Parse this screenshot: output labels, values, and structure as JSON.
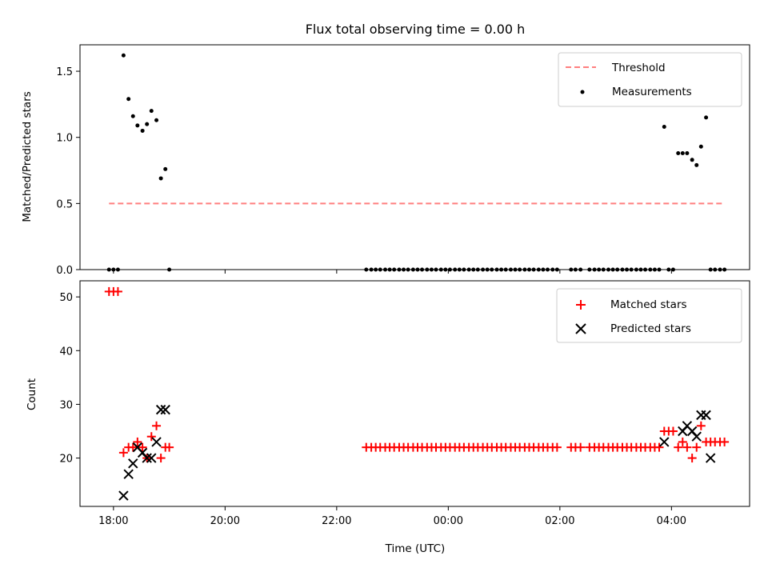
{
  "chart_data": [
    {
      "type": "scatter",
      "title": "Flux total observing time = 0.00 h",
      "xlabel": "",
      "ylabel": "Matched/Predicted stars",
      "x_unit": "hours since 18:00 UTC",
      "xlim": [
        -0.6,
        11.4
      ],
      "ylim": [
        0,
        1.7
      ],
      "yticks": [
        0.0,
        0.5,
        1.0,
        1.5
      ],
      "ytick_labels": [
        "0.0",
        "0.5",
        "1.0",
        "1.5"
      ],
      "legend_position": "top-right",
      "series": [
        {
          "name": "Threshold",
          "kind": "dashed-line",
          "color": "#ff7f7f",
          "x": [
            -0.08,
            10.92
          ],
          "y": [
            0.5,
            0.5
          ]
        },
        {
          "name": "Measurements",
          "kind": "dots",
          "color": "#000000",
          "x": [
            -0.08,
            0.0,
            0.08,
            0.18,
            0.27,
            0.35,
            0.43,
            0.52,
            0.6,
            0.68,
            0.77,
            0.85,
            0.93,
            1.0,
            4.53,
            4.62,
            4.7,
            4.78,
            4.87,
            4.95,
            5.03,
            5.12,
            5.2,
            5.28,
            5.37,
            5.45,
            5.53,
            5.62,
            5.7,
            5.78,
            5.87,
            5.95,
            6.03,
            6.12,
            6.2,
            6.28,
            6.37,
            6.45,
            6.53,
            6.62,
            6.7,
            6.78,
            6.87,
            6.95,
            7.03,
            7.12,
            7.2,
            7.28,
            7.37,
            7.45,
            7.53,
            7.62,
            7.7,
            7.78,
            7.87,
            7.95,
            8.2,
            8.28,
            8.37,
            8.53,
            8.62,
            8.7,
            8.78,
            8.87,
            8.95,
            9.03,
            9.12,
            9.2,
            9.28,
            9.37,
            9.45,
            9.53,
            9.62,
            9.7,
            9.78,
            9.87,
            9.95,
            10.03,
            10.12,
            10.2,
            10.28,
            10.37,
            10.45,
            10.53,
            10.62,
            10.7,
            10.78,
            10.87,
            10.95
          ],
          "y": [
            0,
            0,
            0,
            1.62,
            1.29,
            1.16,
            1.09,
            1.05,
            1.1,
            1.2,
            1.13,
            0.69,
            0.76,
            0,
            0,
            0,
            0,
            0,
            0,
            0,
            0,
            0,
            0,
            0,
            0,
            0,
            0,
            0,
            0,
            0,
            0,
            0,
            0,
            0,
            0,
            0,
            0,
            0,
            0,
            0,
            0,
            0,
            0,
            0,
            0,
            0,
            0,
            0,
            0,
            0,
            0,
            0,
            0,
            0,
            0,
            0,
            0,
            0,
            0,
            0,
            0,
            0,
            0,
            0,
            0,
            0,
            0,
            0,
            0,
            0,
            0,
            0,
            0,
            0,
            0,
            1.08,
            0,
            0,
            0.88,
            0.88,
            0.88,
            0.83,
            0.79,
            0.93,
            1.15,
            0,
            0,
            0,
            0
          ]
        }
      ]
    },
    {
      "type": "scatter",
      "title": "",
      "xlabel": "Time (UTC)",
      "ylabel": "Count",
      "x_unit": "hours since 18:00 UTC",
      "xlim": [
        -0.6,
        11.4
      ],
      "ylim": [
        11,
        53
      ],
      "xticks": [
        0,
        2,
        4,
        6,
        8,
        10
      ],
      "xtick_labels": [
        "18:00",
        "20:00",
        "22:00",
        "00:00",
        "02:00",
        "04:00"
      ],
      "yticks": [
        20,
        30,
        40,
        50
      ],
      "ytick_labels": [
        "20",
        "30",
        "40",
        "50"
      ],
      "legend_position": "top-right",
      "series": [
        {
          "name": "Matched stars",
          "kind": "plus",
          "color": "#ff0000",
          "x": [
            -0.08,
            0.0,
            0.08,
            0.18,
            0.27,
            0.35,
            0.43,
            0.52,
            0.6,
            0.68,
            0.77,
            0.85,
            0.93,
            1.0,
            4.53,
            4.62,
            4.7,
            4.78,
            4.87,
            4.95,
            5.03,
            5.12,
            5.2,
            5.28,
            5.37,
            5.45,
            5.53,
            5.62,
            5.7,
            5.78,
            5.87,
            5.95,
            6.03,
            6.12,
            6.2,
            6.28,
            6.37,
            6.45,
            6.53,
            6.62,
            6.7,
            6.78,
            6.87,
            6.95,
            7.03,
            7.12,
            7.2,
            7.28,
            7.37,
            7.45,
            7.53,
            7.62,
            7.7,
            7.78,
            7.87,
            7.95,
            8.2,
            8.28,
            8.37,
            8.53,
            8.62,
            8.7,
            8.78,
            8.87,
            8.95,
            9.03,
            9.12,
            9.2,
            9.28,
            9.37,
            9.45,
            9.53,
            9.62,
            9.7,
            9.78,
            9.87,
            9.95,
            10.03,
            10.12,
            10.2,
            10.28,
            10.37,
            10.45,
            10.53,
            10.62,
            10.7,
            10.78,
            10.87,
            10.95
          ],
          "y": [
            51,
            51,
            51,
            21,
            22,
            22,
            23,
            22,
            20,
            24,
            26,
            20,
            22,
            22,
            22,
            22,
            22,
            22,
            22,
            22,
            22,
            22,
            22,
            22,
            22,
            22,
            22,
            22,
            22,
            22,
            22,
            22,
            22,
            22,
            22,
            22,
            22,
            22,
            22,
            22,
            22,
            22,
            22,
            22,
            22,
            22,
            22,
            22,
            22,
            22,
            22,
            22,
            22,
            22,
            22,
            22,
            22,
            22,
            22,
            22,
            22,
            22,
            22,
            22,
            22,
            22,
            22,
            22,
            22,
            22,
            22,
            22,
            22,
            22,
            22,
            25,
            25,
            25,
            22,
            23,
            22,
            20,
            22,
            26,
            23,
            23,
            23,
            23,
            23
          ]
        },
        {
          "name": "Predicted stars",
          "kind": "x",
          "color": "#000000",
          "x": [
            0.18,
            0.27,
            0.35,
            0.43,
            0.52,
            0.6,
            0.68,
            0.77,
            0.85,
            0.93,
            9.87,
            10.2,
            10.28,
            10.37,
            10.45,
            10.53,
            10.62,
            10.7
          ],
          "y": [
            13,
            17,
            19,
            22,
            21,
            20,
            20,
            23,
            29,
            29,
            23,
            25,
            26,
            25,
            24,
            28,
            28,
            20
          ]
        }
      ]
    }
  ]
}
